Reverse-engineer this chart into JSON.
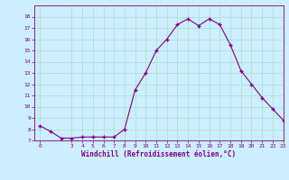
{
  "x": [
    0,
    1,
    2,
    3,
    4,
    5,
    6,
    7,
    8,
    9,
    10,
    11,
    12,
    13,
    14,
    15,
    16,
    17,
    18,
    19,
    20,
    21,
    22,
    23
  ],
  "y": [
    8.3,
    7.8,
    7.2,
    7.2,
    7.3,
    7.3,
    7.3,
    7.3,
    8.0,
    11.5,
    13.0,
    15.0,
    16.0,
    17.3,
    17.8,
    17.2,
    17.8,
    17.3,
    15.5,
    13.2,
    12.0,
    10.8,
    9.8,
    8.8
  ],
  "line_color": "#800080",
  "marker": "+",
  "marker_color": "#800080",
  "marker_size": 3,
  "bg_color": "#cceeff",
  "grid_color": "#aaddcc",
  "xlabel": "Windchill (Refroidissement éolien,°C)",
  "xlabel_color": "#800080",
  "tick_color": "#800080",
  "ylim": [
    7,
    19
  ],
  "xlim": [
    -0.5,
    23
  ],
  "yticks": [
    7,
    8,
    9,
    10,
    11,
    12,
    13,
    14,
    15,
    16,
    17,
    18
  ],
  "xticks": [
    0,
    3,
    4,
    5,
    6,
    7,
    8,
    9,
    10,
    11,
    12,
    13,
    14,
    15,
    16,
    17,
    18,
    19,
    20,
    21,
    22,
    23
  ],
  "spine_color": "#800080",
  "title": ""
}
